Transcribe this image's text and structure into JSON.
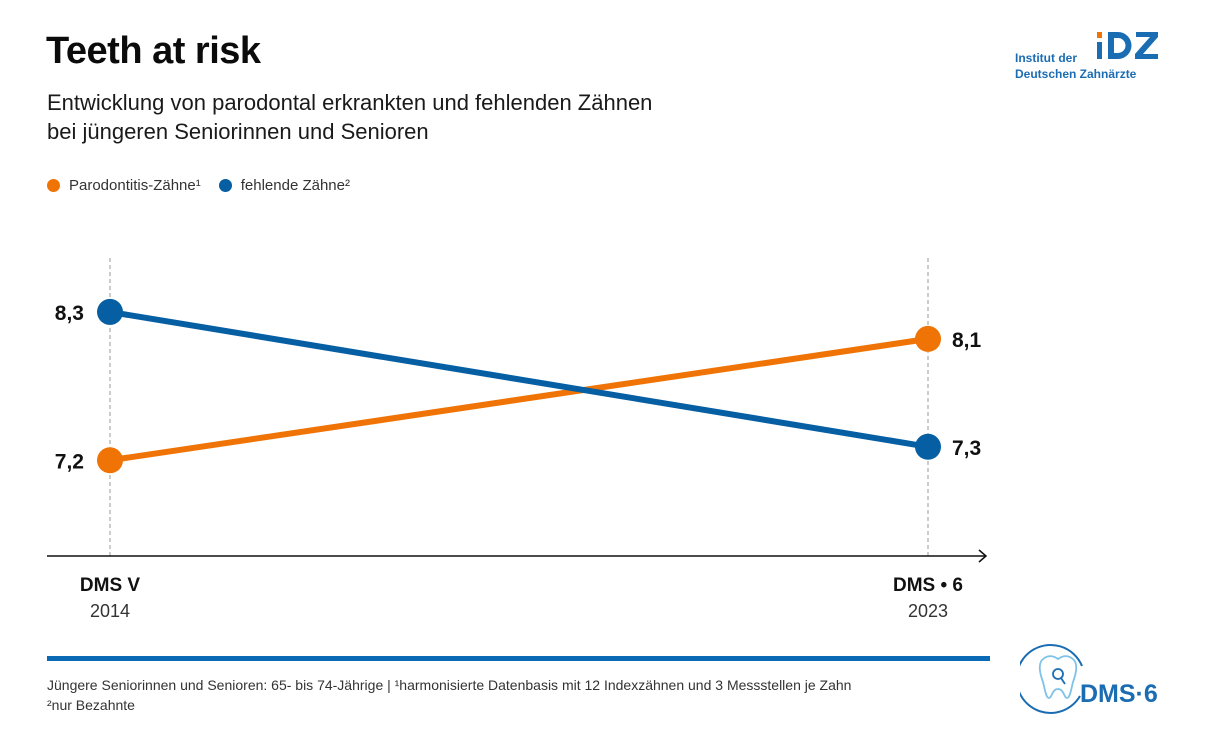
{
  "header": {
    "title": "Teeth at risk",
    "subtitle_line1": "Entwicklung von parodontal erkrankten und fehlenden Zähnen",
    "subtitle_line2": "bei jüngeren Seniorinnen und Senioren"
  },
  "logos": {
    "idz_line1": "Institut der",
    "idz_line2": "Deutschen Zahnärzte",
    "idz_mark": "IDZ",
    "dms_text": "DMS·6"
  },
  "colors": {
    "orange": "#ef7405",
    "blue": "#065ea3",
    "footer_bar": "#0a6ab5",
    "logo_blue": "#1b6db3",
    "logo_light_blue": "#7fc3e8"
  },
  "chart_data": {
    "type": "line",
    "title": "Teeth at risk",
    "subtitle": "Entwicklung von parodontal erkrankten und fehlenden Zähnen bei jüngeren Seniorinnen und Senioren",
    "categories": [
      "DMS V",
      "DMS • 6"
    ],
    "category_years": [
      "2014",
      "2023"
    ],
    "series": [
      {
        "name": "Parodontitis-Zähne¹",
        "color": "#ef7405",
        "values": [
          7.2,
          8.1
        ],
        "labels": [
          "7,2",
          "8,1"
        ]
      },
      {
        "name": "fehlende Zähne²",
        "color": "#065ea3",
        "values": [
          8.3,
          7.3
        ],
        "labels": [
          "8,3",
          "7,3"
        ]
      }
    ],
    "xlabel": "",
    "ylabel": "",
    "ylim": [
      6.49,
      8.7
    ],
    "grid": false,
    "y_axis_visible": false,
    "legend_position": "top-left"
  },
  "footnote": {
    "line1": "Jüngere Seniorinnen und Senioren: 65- bis 74-Jährige | ¹harmonisierte Datenbasis mit 12 Indexzähnen und 3 Messstellen je Zahn",
    "line2": "²nur Bezahnte"
  }
}
